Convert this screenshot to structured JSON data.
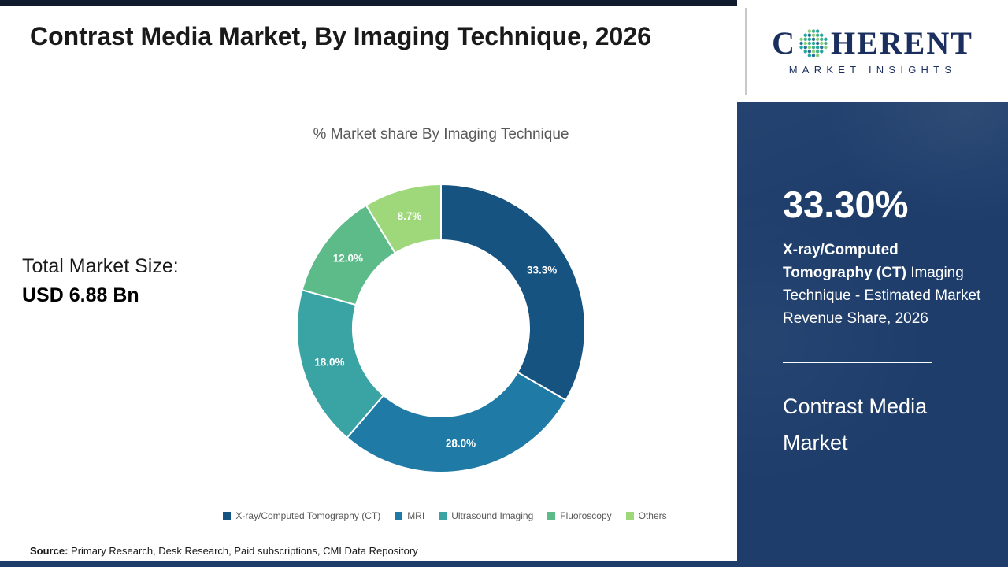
{
  "header": {
    "title": "Contrast Media Market, By Imaging Technique, 2026"
  },
  "left": {
    "subtitle": "% Market share By Imaging Technique",
    "total_label": "Total Market Size:",
    "total_value": "USD 6.88 Bn",
    "source_label": "Source:",
    "source_text": " Primary Research, Desk Research, Paid subscriptions, CMI Data Repository"
  },
  "chart_data": {
    "type": "pie",
    "subtype": "donut",
    "title": "% Market share By Imaging Technique",
    "categories": [
      "X-ray/Computed Tomography (CT)",
      "MRI",
      "Ultrasound Imaging",
      "Fluoroscopy",
      "Others"
    ],
    "values": [
      33.3,
      28.0,
      18.0,
      12.0,
      8.7
    ],
    "labels": [
      "33.3%",
      "28.0%",
      "18.0%",
      "12.0%",
      "8.7%"
    ],
    "colors": [
      "#165380",
      "#1f7aa6",
      "#3aa3a3",
      "#5cbb88",
      "#9ed87a"
    ],
    "start_angle_deg": 0,
    "direction": "clockwise",
    "legend_position": "bottom",
    "total_market_size": "USD 6.88 Bn"
  },
  "sidebar": {
    "logo": {
      "c": "C",
      "rest": "HERENT",
      "sub": "MARKET INSIGHTS"
    },
    "logo_dot_colors": [
      "#1fa7a0",
      "#43b18b",
      "#8ccf7a",
      "#2a6f97"
    ],
    "stat_value": "33.30%",
    "stat_bold": "X-ray/Computed Tomography (CT)",
    "stat_rest": " Imaging Technique - Estimated Market Revenue Share, 2026",
    "market_name": "Contrast Media Market"
  },
  "colors": {
    "sidebar_bg": "#1e3d6b",
    "top_strip": "#101b2e",
    "bottom_strip": "#1e3d6b",
    "logo_text": "#1b2f5e",
    "subtitle_text": "#595959"
  }
}
